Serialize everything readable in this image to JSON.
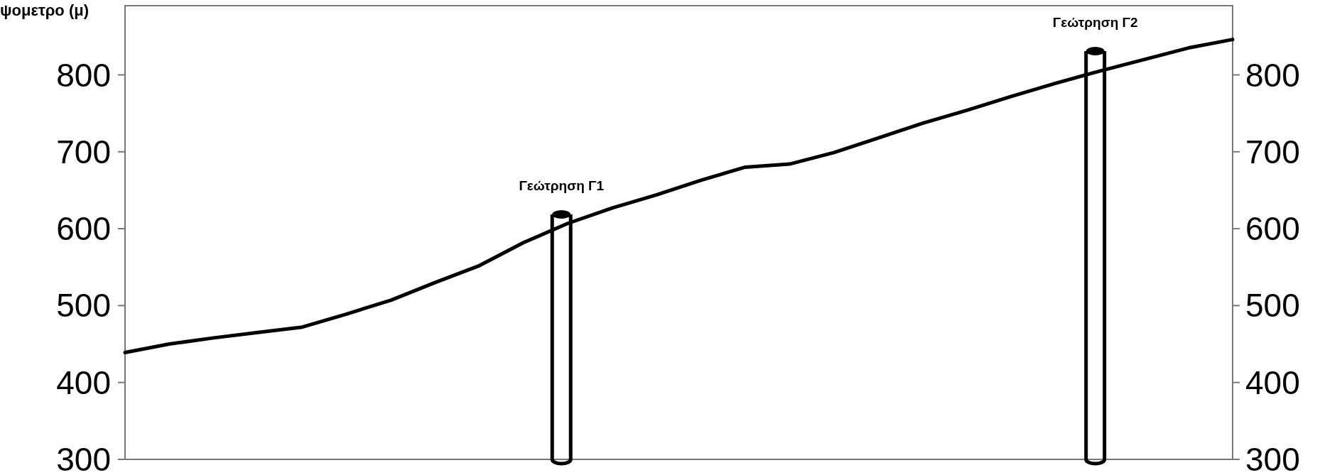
{
  "chart_data": {
    "type": "line",
    "ylabel": "ψομετρο (μ)",
    "categories": [
      null,
      null,
      null,
      null,
      null,
      null,
      null,
      null,
      null,
      null,
      null,
      null,
      null,
      null,
      null,
      null,
      null,
      null,
      null,
      null,
      null,
      null,
      null,
      null,
      null,
      null
    ],
    "series": [
      {
        "color": "#000000",
        "values": [
          439,
          450,
          458,
          465,
          472,
          489,
          507,
          530,
          552,
          582,
          607,
          627,
          644,
          663,
          680,
          684,
          699,
          718,
          737,
          754,
          772,
          789,
          805,
          820,
          835,
          846
        ]
      }
    ],
    "annotations": [
      "Γεώτρηση Γ1",
      "Γεώτρηση Γ2"
    ],
    "ylim": [
      300,
      890
    ],
    "yticks": [
      300,
      400,
      500,
      600,
      700,
      800
    ],
    "y2lim": [
      300,
      890
    ],
    "y2ticks": [
      300,
      400,
      500,
      600,
      700,
      800
    ],
    "grid": false,
    "marker": "none",
    "line_style": "solid"
  }
}
